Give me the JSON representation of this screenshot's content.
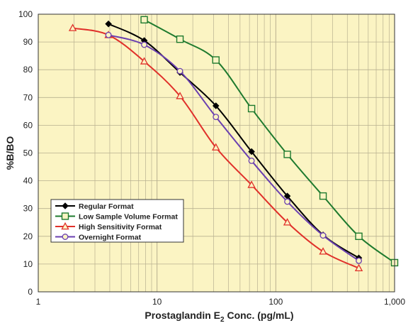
{
  "chart_data": {
    "type": "line",
    "x_scale": "log",
    "xlabel": {
      "main": "Prostaglandin E",
      "subscript": "2",
      "suffix": " Conc. (pg/mL)"
    },
    "ylabel": "%B/BO",
    "xlim": [
      1,
      1000
    ],
    "ylim": [
      0,
      100
    ],
    "x_ticks": [
      {
        "value": 1,
        "label": "1"
      },
      {
        "value": 10,
        "label": "10"
      },
      {
        "value": 100,
        "label": "100"
      },
      {
        "value": 1000,
        "label": "1,000"
      }
    ],
    "y_ticks": [
      {
        "value": 0,
        "label": "0"
      },
      {
        "value": 10,
        "label": "10"
      },
      {
        "value": 20,
        "label": "20"
      },
      {
        "value": 30,
        "label": "30"
      },
      {
        "value": 40,
        "label": "40"
      },
      {
        "value": 50,
        "label": "50"
      },
      {
        "value": 60,
        "label": "60"
      },
      {
        "value": 70,
        "label": "70"
      },
      {
        "value": 80,
        "label": "80"
      },
      {
        "value": 90,
        "label": "90"
      },
      {
        "value": 100,
        "label": "100"
      }
    ],
    "grid": true,
    "background_color": "#fbf4c3",
    "grid_color": "#b8b090",
    "legend_position": "lower-left",
    "series": [
      {
        "name": "Regular Format",
        "color": "#000000",
        "marker": "diamond",
        "x": [
          3.9,
          7.8,
          15.6,
          31.3,
          62.5,
          125,
          250,
          500
        ],
        "y": [
          96.5,
          90.5,
          79,
          67,
          50.5,
          34.5,
          20.5,
          12.2
        ]
      },
      {
        "name": "Low Sample Volume Format",
        "color": "#1e7a2e",
        "marker": "square",
        "x": [
          7.8,
          15.6,
          31.3,
          62.5,
          125,
          250,
          500,
          1000
        ],
        "y": [
          98,
          91,
          83.5,
          66,
          49.5,
          34.5,
          20,
          10.5
        ]
      },
      {
        "name": "High Sensitivity Format",
        "color": "#e0302a",
        "marker": "triangle",
        "x": [
          1.95,
          3.9,
          7.8,
          15.6,
          31.3,
          62.5,
          125,
          250,
          500
        ],
        "y": [
          95,
          92.5,
          83,
          70.5,
          52,
          38.5,
          25,
          14.5,
          8.5
        ]
      },
      {
        "name": "Overnight Format",
        "color": "#6a3fb0",
        "marker": "circle",
        "x": [
          3.9,
          7.8,
          15.6,
          31.3,
          62.5,
          125,
          250,
          500
        ],
        "y": [
          92.5,
          89,
          79.5,
          63,
          47.2,
          32.5,
          20.3,
          11.2
        ]
      }
    ]
  }
}
